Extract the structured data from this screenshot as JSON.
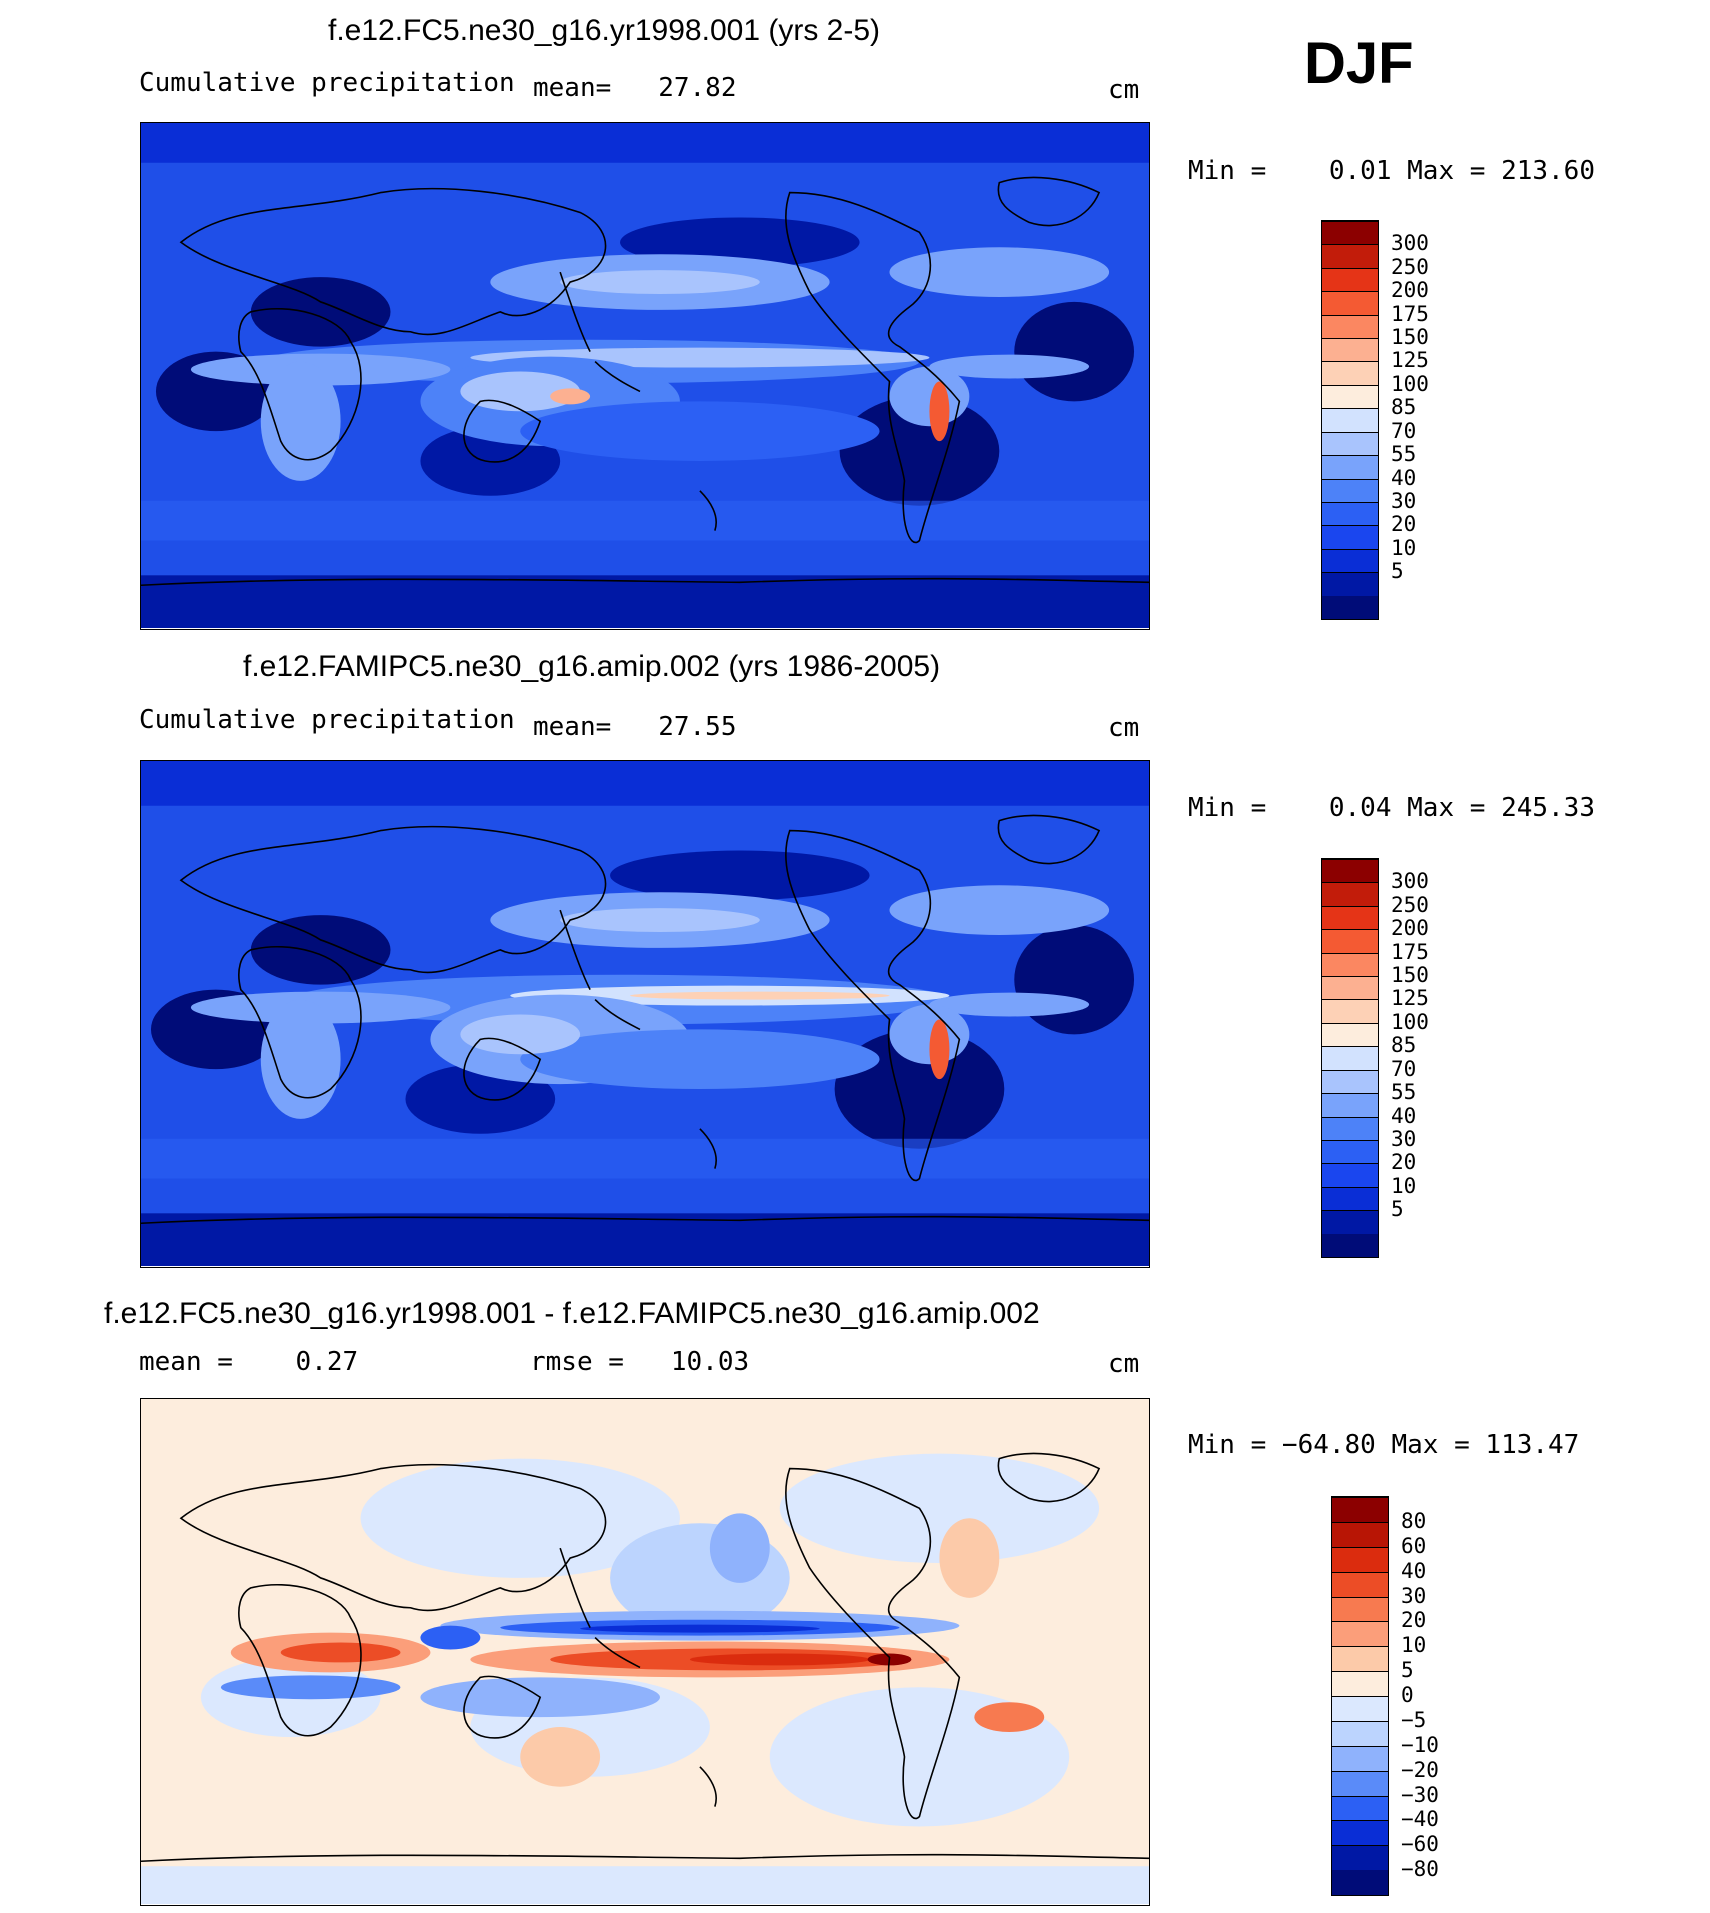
{
  "season": "DJF",
  "colors": {
    "abs": [
      "#000c78",
      "#0018a5",
      "#0a2ed6",
      "#1a46ef",
      "#2c60f4",
      "#4d82f8",
      "#79a3fb",
      "#a9c4fd",
      "#d2e2fe",
      "#fdeddd",
      "#fdd1b6",
      "#fcb091",
      "#fb8761",
      "#f45a33",
      "#e53417",
      "#c21c0a",
      "#8c0000"
    ],
    "diff": [
      "#000c78",
      "#0018a5",
      "#0a2ed6",
      "#2c60f4",
      "#5a8bf9",
      "#8fb2fc",
      "#bcd4fe",
      "#dbe8fe",
      "#fdeddd",
      "#fccaa9",
      "#fb9e7a",
      "#f77a50",
      "#ec4d26",
      "#db2c0e",
      "#b81505",
      "#8c0000"
    ]
  },
  "panels": [
    {
      "title": "f.e12.FC5.ne30_g16.yr1998.001 (yrs 2-5)",
      "left_label": "Cumulative precipitation",
      "stat1": "mean=   27.82",
      "units": "cm",
      "minmax": "Min =    0.01 Max = 213.60",
      "levels": [
        "300",
        "250",
        "200",
        "175",
        "150",
        "125",
        "100",
        "85",
        "70",
        "55",
        "40",
        "30",
        "20",
        "10",
        "5"
      ]
    },
    {
      "title": "f.e12.FAMIPC5.ne30_g16.amip.002 (yrs 1986-2005)",
      "left_label": "Cumulative precipitation",
      "stat1": "mean=   27.55",
      "units": "cm",
      "minmax": "Min =    0.04 Max = 245.33",
      "levels": [
        "300",
        "250",
        "200",
        "175",
        "150",
        "125",
        "100",
        "85",
        "70",
        "55",
        "40",
        "30",
        "20",
        "10",
        "5"
      ]
    },
    {
      "title": "f.e12.FC5.ne30_g16.yr1998.001 - f.e12.FAMIPC5.ne30_g16.amip.002",
      "stat1": "mean =    0.27",
      "stat2": "rmse =   10.03",
      "units": "cm",
      "minmax": "Min = −64.80 Max = 113.47",
      "levels": [
        "80",
        "60",
        "40",
        "30",
        "20",
        "10",
        "5",
        "0",
        "−5",
        "−10",
        "−20",
        "−30",
        "−40",
        "−60",
        "−80"
      ]
    }
  ]
}
